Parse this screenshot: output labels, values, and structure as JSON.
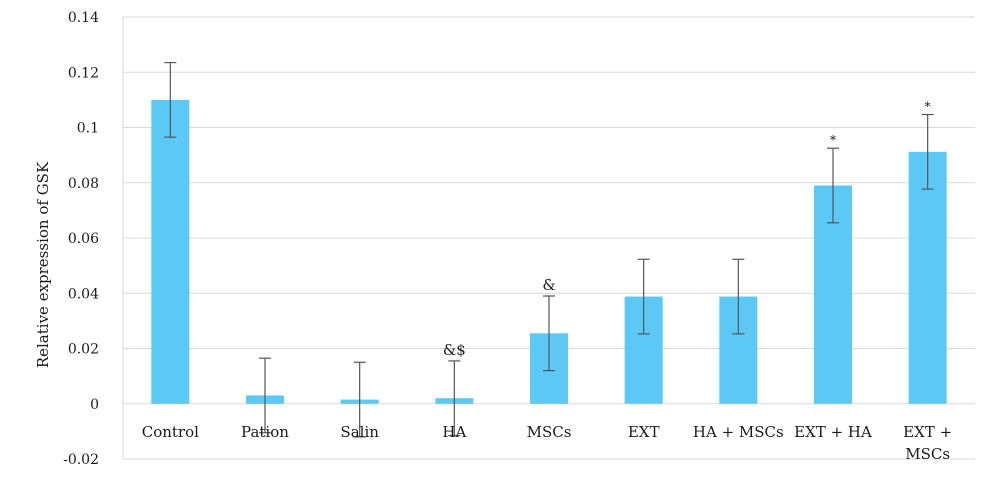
{
  "chart_data": {
    "type": "bar",
    "title": "",
    "xlabel": "",
    "ylabel": "Relative expression of GSK",
    "ylim": [
      -0.02,
      0.14
    ],
    "yticks": [
      -0.02,
      0,
      0.02,
      0.04,
      0.06,
      0.08,
      0.1,
      0.12,
      0.14
    ],
    "ytick_labels": [
      "-0.02",
      "0",
      "0.02",
      "0.04",
      "0.06",
      "0.08",
      "0.1",
      "0.12",
      "0.14"
    ],
    "grid": true,
    "bar_color": "#5bc8f5",
    "error_color": "#555555",
    "categories": [
      {
        "label": [
          "Control"
        ]
      },
      {
        "label": [
          "Pation"
        ]
      },
      {
        "label": [
          "Salin"
        ]
      },
      {
        "label": [
          "HA"
        ]
      },
      {
        "label": [
          "MSCs"
        ]
      },
      {
        "label": [
          "EXT"
        ]
      },
      {
        "label": [
          "HA + MSCs"
        ]
      },
      {
        "label": [
          "EXT + HA"
        ]
      },
      {
        "label": [
          "EXT +",
          "MSCs"
        ]
      }
    ],
    "values": [
      0.11,
      0.003,
      0.0015,
      0.002,
      0.0255,
      0.0388,
      0.0388,
      0.079,
      0.0912
    ],
    "errors": [
      0.0135,
      0.0135,
      0.0135,
      0.0135,
      0.0135,
      0.0135,
      0.0135,
      0.0135,
      0.0135
    ],
    "annotations": [
      "",
      "",
      "",
      "&$",
      "&",
      "",
      "",
      "*",
      "*"
    ]
  }
}
